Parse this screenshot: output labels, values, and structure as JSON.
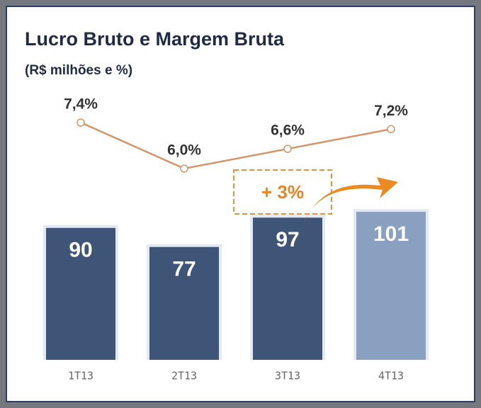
{
  "chart_data": {
    "type": "bar",
    "title": "Lucro Bruto e Margem Bruta",
    "subtitle": "(R$ milhões e %)",
    "categories": [
      "1T13",
      "2T13",
      "3T13",
      "4T13"
    ],
    "series": [
      {
        "type": "bar",
        "values": [
          90,
          77,
          97,
          101
        ],
        "colors": [
          "#3f5577",
          "#3f5577",
          "#3f5577",
          "#8aa0c0"
        ]
      },
      {
        "type": "line",
        "values": [
          7.4,
          6.0,
          6.6,
          7.2
        ],
        "value_labels": [
          "7,4%",
          "6,0%",
          "6,6%",
          "7,2%"
        ],
        "color": "#d4956a"
      }
    ],
    "annotation": "+ 3%"
  }
}
